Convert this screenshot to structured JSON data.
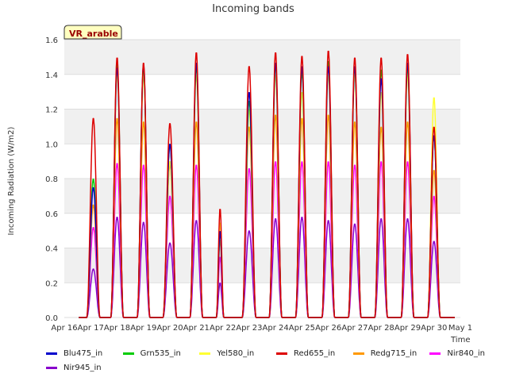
{
  "chart_data": {
    "type": "line",
    "title": "Incoming bands",
    "xlabel": "Time",
    "ylabel": "Incoming Radiation (W/m2)",
    "annotation": "VR_arable",
    "x_ticks": [
      "Apr 16",
      "Apr 17",
      "Apr 18",
      "Apr 19",
      "Apr 20",
      "Apr 21",
      "Apr 22",
      "Apr 23",
      "Apr 24",
      "Apr 25",
      "Apr 26",
      "Apr 27",
      "Apr 28",
      "Apr 29",
      "Apr 30",
      "May 1"
    ],
    "y_ticks": [
      "0.0",
      "0.2",
      "0.4",
      "0.6",
      "0.8",
      "1.0",
      "1.2",
      "1.4",
      "1.6"
    ],
    "ylim": [
      0,
      1.6
    ],
    "xlim_days": [
      16,
      31
    ],
    "grid": true,
    "legend_position": "bottom",
    "daily_peaks": {
      "x": [
        "Apr 17",
        "Apr 18",
        "Apr 19",
        "Apr 20",
        "Apr 21",
        "Apr 22",
        "Apr 23",
        "Apr 24",
        "Apr 25",
        "Apr 26",
        "Apr 27",
        "Apr 28",
        "Apr 29",
        "Apr 30"
      ],
      "day": [
        17.1,
        18.0,
        19.0,
        20.0,
        21.0,
        21.9,
        23.0,
        24.0,
        25.0,
        26.0,
        27.0,
        28.0,
        29.0,
        30.0
      ],
      "rel_width": [
        0.25,
        0.24,
        0.24,
        0.26,
        0.24,
        0.14,
        0.26,
        0.24,
        0.24,
        0.24,
        0.24,
        0.24,
        0.24,
        0.24
      ]
    },
    "series": [
      {
        "name": "Blu475_in",
        "color": "#0000cc",
        "values": [
          0.75,
          1.44,
          1.46,
          1.0,
          1.47,
          0.5,
          1.3,
          1.47,
          1.45,
          1.45,
          1.45,
          1.38,
          1.47,
          1.05
        ]
      },
      {
        "name": "Grn535_in",
        "color": "#00cc00",
        "values": [
          0.8,
          1.46,
          1.44,
          1.0,
          1.45,
          0.5,
          1.25,
          1.46,
          1.42,
          1.48,
          1.45,
          1.43,
          1.45,
          1.05
        ]
      },
      {
        "name": "Yel580_in",
        "color": "#ffff33",
        "values": [
          0.75,
          1.4,
          1.4,
          0.9,
          1.4,
          0.55,
          1.2,
          1.4,
          1.3,
          1.4,
          1.4,
          1.3,
          1.4,
          1.27
        ]
      },
      {
        "name": "Red655_in",
        "color": "#dd0000",
        "values": [
          1.15,
          1.5,
          1.47,
          1.12,
          1.53,
          0.63,
          1.45,
          1.53,
          1.51,
          1.54,
          1.5,
          1.5,
          1.52,
          1.1
        ]
      },
      {
        "name": "Redg715_in",
        "color": "#ff9900",
        "values": [
          0.65,
          1.15,
          1.13,
          0.88,
          1.13,
          0.45,
          1.1,
          1.17,
          1.15,
          1.17,
          1.13,
          1.1,
          1.13,
          0.85
        ]
      },
      {
        "name": "Nir840_in",
        "color": "#ff00ff",
        "values": [
          0.52,
          0.89,
          0.88,
          0.7,
          0.88,
          0.35,
          0.86,
          0.9,
          0.9,
          0.9,
          0.88,
          0.9,
          0.9,
          0.7
        ]
      },
      {
        "name": "Nir945_in",
        "color": "#8800cc",
        "values": [
          0.28,
          0.58,
          0.55,
          0.43,
          0.56,
          0.2,
          0.5,
          0.57,
          0.58,
          0.56,
          0.54,
          0.57,
          0.57,
          0.44
        ]
      }
    ]
  }
}
